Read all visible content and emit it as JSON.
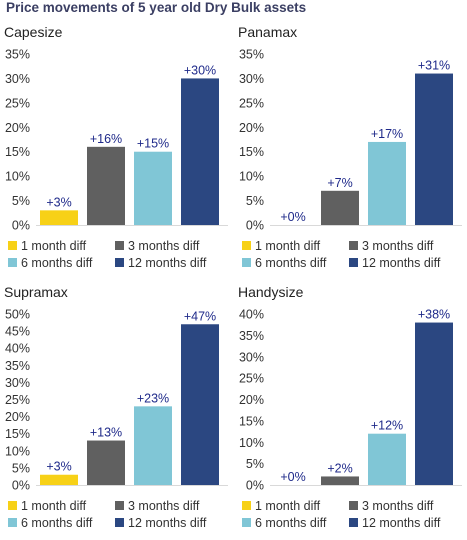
{
  "page_title": "Price movements of 5 year old Dry Bulk assets",
  "legend_colors": [
    "#f7d117",
    "#606060",
    "#80c6d6",
    "#2b4781"
  ],
  "chart_data": [
    {
      "type": "bar",
      "title": "Capesize",
      "categories": [
        "1 month diff",
        "3 months diff",
        "6 months diff",
        "12 months diff"
      ],
      "values": [
        3,
        16,
        15,
        30
      ],
      "data_labels": [
        "+3%",
        "+16%",
        "+15%",
        "+30%"
      ],
      "yticks": [
        "0%",
        "5%",
        "10%",
        "15%",
        "20%",
        "25%",
        "30%",
        "35%"
      ],
      "ylim": [
        0,
        35
      ],
      "legend": "bottom"
    },
    {
      "type": "bar",
      "title": "Panamax",
      "categories": [
        "1 month diff",
        "3 months diff",
        "6 months diff",
        "12 months diff"
      ],
      "values": [
        0,
        7,
        17,
        31
      ],
      "data_labels": [
        "+0%",
        "+7%",
        "+17%",
        "+31%"
      ],
      "yticks": [
        "0%",
        "5%",
        "10%",
        "15%",
        "20%",
        "25%",
        "30%",
        "35%"
      ],
      "ylim": [
        0,
        35
      ],
      "legend": "bottom"
    },
    {
      "type": "bar",
      "title": "Supramax",
      "categories": [
        "1 month diff",
        "3 months diff",
        "6 months diff",
        "12 months diff"
      ],
      "values": [
        3,
        13,
        23,
        47
      ],
      "data_labels": [
        "+3%",
        "+13%",
        "+23%",
        "+47%"
      ],
      "yticks": [
        "0%",
        "5%",
        "10%",
        "15%",
        "20%",
        "25%",
        "30%",
        "35%",
        "40%",
        "45%",
        "50%"
      ],
      "ylim": [
        0,
        50
      ],
      "legend": "bottom"
    },
    {
      "type": "bar",
      "title": "Handysize",
      "categories": [
        "1 month diff",
        "3 months diff",
        "6 months diff",
        "12 months diff"
      ],
      "values": [
        0,
        2,
        12,
        38
      ],
      "data_labels": [
        "+0%",
        "+2%",
        "+12%",
        "+38%"
      ],
      "yticks": [
        "0%",
        "5%",
        "10%",
        "15%",
        "20%",
        "25%",
        "30%",
        "35%",
        "40%"
      ],
      "ylim": [
        0,
        40
      ],
      "legend": "bottom"
    }
  ]
}
